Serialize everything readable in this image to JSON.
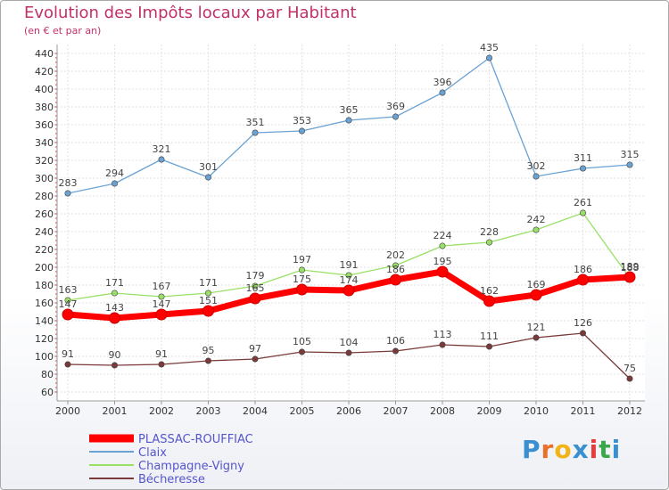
{
  "chart_data": {
    "type": "line",
    "title": "Evolution des Impôts locaux par Habitant",
    "subtitle": "(en € et par an)",
    "x": [
      "2000",
      "2001",
      "2002",
      "2003",
      "2004",
      "2005",
      "2006",
      "2007",
      "2008",
      "2009",
      "2010",
      "2011",
      "2012"
    ],
    "ylim": [
      60,
      440
    ],
    "yticks": [
      60,
      80,
      100,
      120,
      140,
      160,
      180,
      200,
      220,
      240,
      260,
      280,
      300,
      320,
      340,
      360,
      380,
      400,
      420,
      440
    ],
    "grid": true,
    "legend_position": "bottom-left",
    "series": [
      {
        "name": "PLASSAC-ROUFFIAC",
        "color": "#ff0000",
        "values": [
          147,
          143,
          147,
          151,
          165,
          175,
          174,
          186,
          195,
          162,
          169,
          186,
          189
        ]
      },
      {
        "name": "Claix",
        "color": "#6aa2d4",
        "values": [
          283,
          294,
          321,
          301,
          351,
          353,
          365,
          369,
          396,
          435,
          302,
          311,
          315
        ]
      },
      {
        "name": "Champagne-Vigny",
        "color": "#99e066",
        "values": [
          163,
          171,
          167,
          171,
          179,
          197,
          191,
          202,
          224,
          228,
          242,
          261,
          188
        ]
      },
      {
        "name": "Bécheresse",
        "color": "#7a3a3a",
        "values": [
          91,
          90,
          91,
          95,
          97,
          105,
          104,
          106,
          113,
          111,
          121,
          126,
          75
        ]
      }
    ]
  },
  "brand": {
    "letters": [
      "P",
      "r",
      "o",
      "x",
      "i",
      "t",
      "i"
    ],
    "colors": [
      "#3a8fd1",
      "#e8702a",
      "#f2b318",
      "#3a8fd1",
      "#e83a3a",
      "#3aa84a",
      "#3a8fd1"
    ]
  }
}
